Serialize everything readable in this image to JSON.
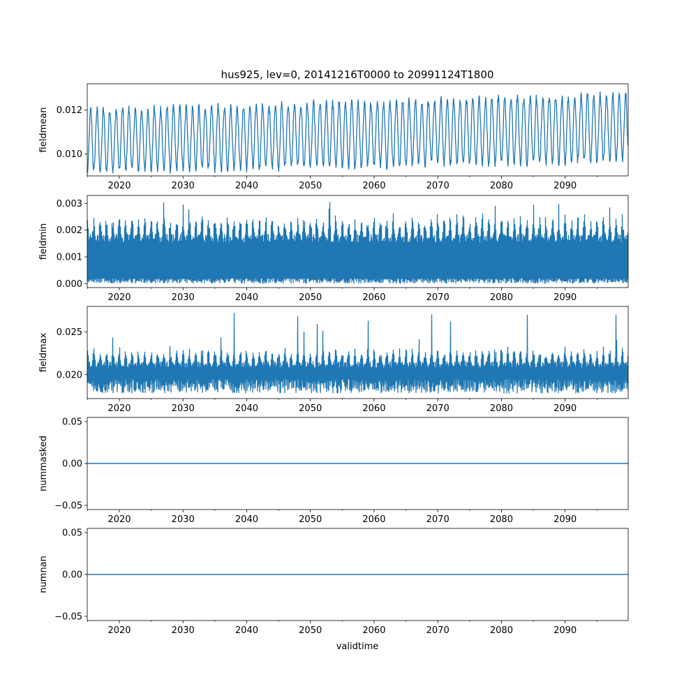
{
  "chart_data": {
    "title": "hus925, lev=0, 20141216T0000 to 20991124T1800",
    "xlabel": "validtime",
    "x_range": [
      2014.96,
      2099.9
    ],
    "x_ticks": [
      2020,
      2030,
      2040,
      2050,
      2060,
      2070,
      2080,
      2090
    ],
    "x_tick_labels": [
      "2020",
      "2030",
      "2040",
      "2050",
      "2060",
      "2070",
      "2080",
      "2090"
    ],
    "line_color": "#1f77b4",
    "panels": [
      {
        "type": "line",
        "ylabel": "fieldmean",
        "ylim": [
          0.009,
          0.0132
        ],
        "y_ticks": [
          0.01,
          0.012
        ],
        "y_tick_labels": [
          "0.010",
          "0.012"
        ],
        "series": {
          "name": "fieldmean",
          "kind": "seasonal",
          "base_start": 0.0106,
          "base_end": 0.0112,
          "amp_start": 0.0014,
          "amp_end": 0.0015,
          "jitter": 0.0004
        }
      },
      {
        "type": "line",
        "ylabel": "fieldmin",
        "ylim": [
          -0.00015,
          0.0033
        ],
        "y_ticks": [
          0.0,
          0.001,
          0.002,
          0.003
        ],
        "y_tick_labels": [
          "0.000",
          "0.001",
          "0.002",
          "0.003"
        ],
        "series": {
          "name": "fieldmin",
          "kind": "band",
          "low_min": 0.0,
          "low_max": 0.0002,
          "high_base": 0.0017,
          "high_amp": 0.0008,
          "spike_max": 0.0032
        }
      },
      {
        "type": "line",
        "ylabel": "fieldmax",
        "ylim": [
          0.0172,
          0.028
        ],
        "y_ticks": [
          0.02,
          0.025
        ],
        "y_tick_labels": [
          "0.020",
          "0.025"
        ],
        "series": {
          "name": "fieldmax",
          "kind": "band",
          "low_min": 0.0178,
          "low_max": 0.0195,
          "high_base": 0.0212,
          "high_amp": 0.0018,
          "spike_max": 0.0277
        }
      },
      {
        "type": "line",
        "ylabel": "nummasked",
        "ylim": [
          -0.055,
          0.055
        ],
        "y_ticks": [
          -0.05,
          0.0,
          0.05
        ],
        "y_tick_labels": [
          "−0.05",
          "0.00",
          "0.05"
        ],
        "series": {
          "name": "nummasked",
          "kind": "constant",
          "value": 0.0
        }
      },
      {
        "type": "line",
        "ylabel": "numnan",
        "ylim": [
          -0.055,
          0.055
        ],
        "y_ticks": [
          -0.05,
          0.0,
          0.05
        ],
        "y_tick_labels": [
          "−0.05",
          "0.00",
          "0.05"
        ],
        "series": {
          "name": "numnan",
          "kind": "constant",
          "value": 0.0
        }
      }
    ]
  }
}
